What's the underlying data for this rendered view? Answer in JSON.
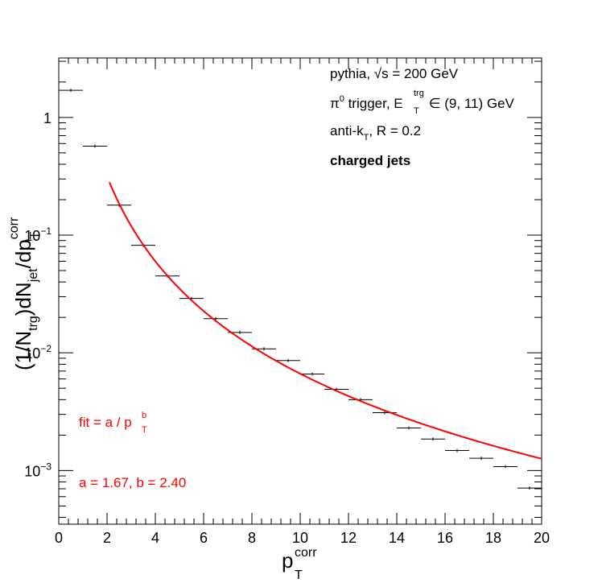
{
  "chart_data": {
    "type": "scatter",
    "log_y": true,
    "xlim": [
      0,
      20
    ],
    "ylim": [
      0.00035,
      3.2
    ],
    "grid": false,
    "x_ticks": [
      "0",
      "2",
      "4",
      "6",
      "8",
      "10",
      "12",
      "14",
      "16",
      "18",
      "20"
    ],
    "y_ticks": [
      {
        "value": 1,
        "base": "1",
        "exp": ""
      },
      {
        "value": 0.1,
        "base": "10",
        "exp": "−1"
      },
      {
        "value": 0.01,
        "base": "10",
        "exp": "−2"
      },
      {
        "value": 0.001,
        "base": "10",
        "exp": "−3"
      }
    ],
    "xlabel": {
      "main": "p",
      "sub": "T",
      "sup": "corr"
    },
    "ylabel": {
      "p1": "(1/N",
      "s1": "trg",
      "p2": ")dN",
      "s2": "jet",
      "p3": "/dp",
      "s3": "T",
      "sup3": "corr"
    },
    "legend_lines": [
      {
        "text": "pythia, √s = 200 GeV"
      },
      {
        "text_a": "π",
        "sup_a": "0",
        "text_b": " trigger, E",
        "sub_b": "T",
        "sup_b": "trg",
        "text_c": " ∈ (9, 11) GeV"
      },
      {
        "text_a": "anti-k",
        "sub_a": "T",
        "text_b": ", R = 0.2"
      },
      {
        "text": "charged jets"
      }
    ],
    "fit_label": {
      "text": "fit = a / p",
      "sub": "T",
      "sup": "b"
    },
    "fit_params": "a = 1.67, b = 2.40",
    "fit_color": "#ff0000",
    "marker_color": "#000000",
    "series": [
      {
        "x": [
          0.5,
          1.5,
          2.5,
          3.5,
          4.5,
          5.5,
          6.5,
          7.5,
          8.5,
          9.5,
          10.5,
          11.5,
          12.5,
          13.5,
          14.5,
          15.5,
          16.5,
          17.5,
          18.5,
          19.5
        ],
        "y": [
          1.7,
          0.57,
          0.18,
          0.082,
          0.045,
          0.029,
          0.0195,
          0.0149,
          0.0108,
          0.0086,
          0.0066,
          0.0049,
          0.004,
          0.0031,
          0.0023,
          0.00185,
          0.00148,
          0.00127,
          0.00108,
          0.00071
        ],
        "x_err": 0.5
      }
    ],
    "fit": {
      "a": 1.67,
      "b": 2.4,
      "x_range": [
        2.1,
        20
      ]
    }
  }
}
